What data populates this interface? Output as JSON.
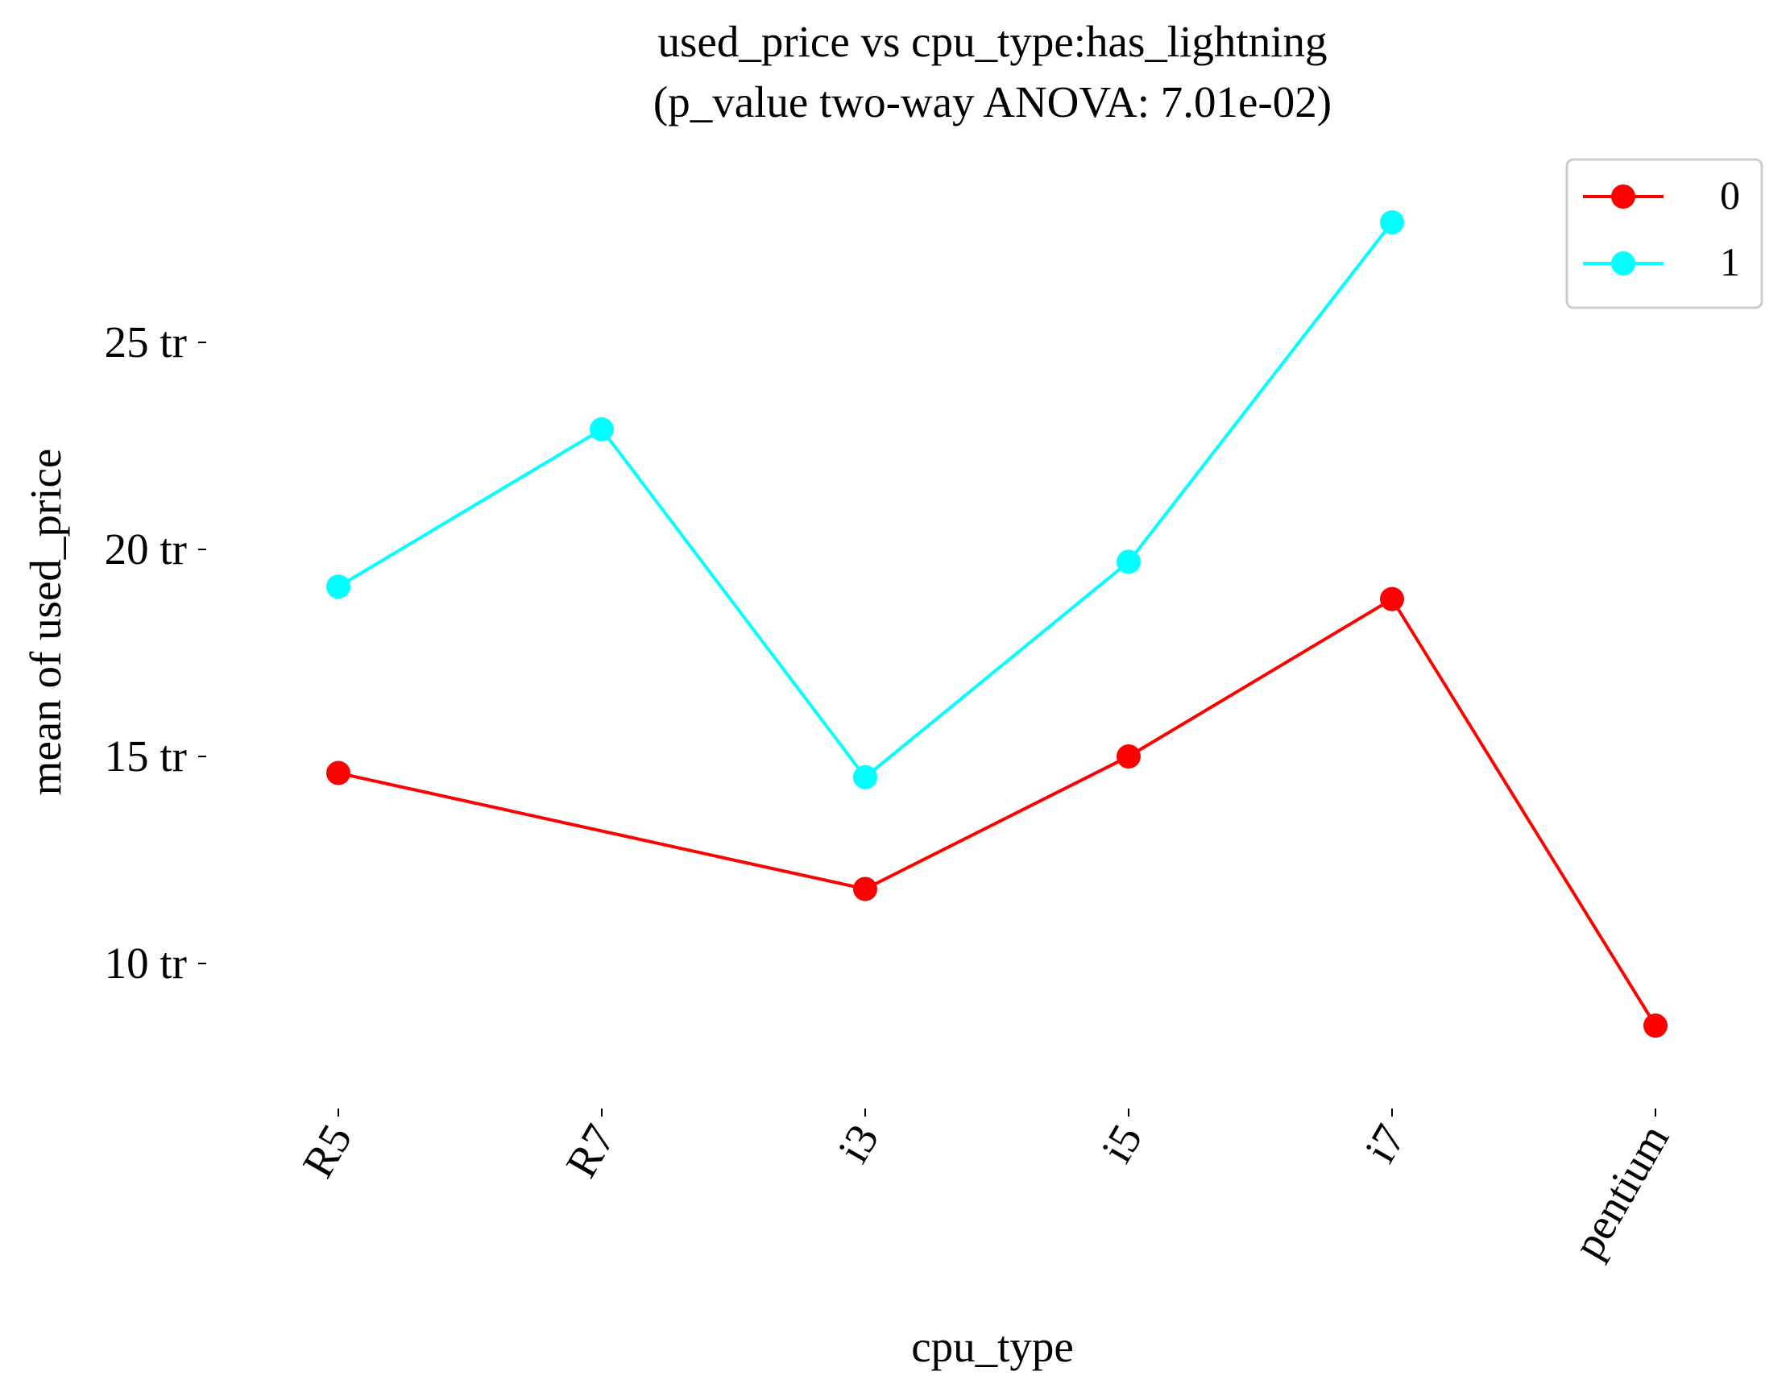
{
  "chart_data": {
    "type": "line",
    "title": "used_price vs cpu_type:has_lightning",
    "subtitle": "(p_value two-way ANOVA: 7.01e-02)",
    "xlabel": "cpu_type",
    "ylabel": "mean of used_price",
    "categories": [
      "R5",
      "R7",
      "i3",
      "i5",
      "i7",
      "pentium"
    ],
    "y_ticks": [
      10,
      15,
      20,
      25
    ],
    "y_tick_labels": [
      "10 tr",
      "15 tr",
      "20 tr",
      "25 tr"
    ],
    "y_unit": "tr",
    "ylim": [
      6.5,
      29.5
    ],
    "legend_title": "",
    "legend_position": "top-right",
    "grid": false,
    "series": [
      {
        "name": "0",
        "color": "#ff0000",
        "values": [
          14.6,
          null,
          11.8,
          15.0,
          18.8,
          8.5
        ]
      },
      {
        "name": "1",
        "color": "#00ffff",
        "values": [
          19.1,
          22.9,
          14.5,
          19.7,
          27.9,
          null
        ]
      }
    ]
  }
}
